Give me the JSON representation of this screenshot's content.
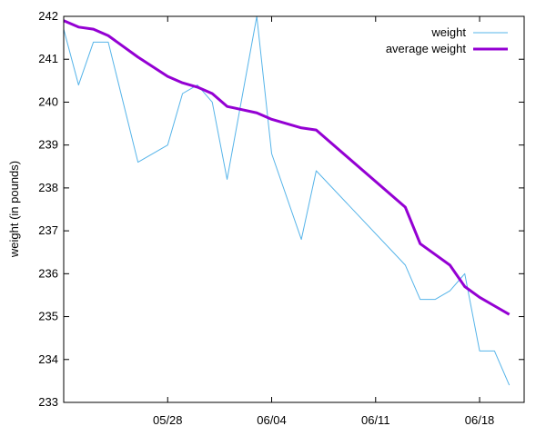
{
  "chart_data": {
    "type": "line",
    "title": "",
    "xlabel": "",
    "ylabel": "weight (in pounds)",
    "x_tick_labels": [
      "05/28",
      "06/04",
      "06/11",
      "06/18"
    ],
    "x_tick_dates": [
      "2024-05-28",
      "2024-06-04",
      "2024-06-11",
      "2024-06-18"
    ],
    "x_range": [
      "2024-05-21",
      "2024-06-21"
    ],
    "ylim": [
      233,
      242
    ],
    "y_ticks": [
      233,
      234,
      235,
      236,
      237,
      238,
      239,
      240,
      241,
      242
    ],
    "grid": false,
    "legend_position": "top-right",
    "series": [
      {
        "name": "weight",
        "color": "#56b4e9",
        "points": [
          [
            "2024-05-21",
            241.7
          ],
          [
            "2024-05-22",
            240.4
          ],
          [
            "2024-05-23",
            241.4
          ],
          [
            "2024-05-24",
            241.4
          ],
          [
            "2024-05-26",
            238.6
          ],
          [
            "2024-05-28",
            239.0
          ],
          [
            "2024-05-29",
            240.2
          ],
          [
            "2024-05-30",
            240.4
          ],
          [
            "2024-05-31",
            240.0
          ],
          [
            "2024-06-01",
            238.2
          ],
          [
            "2024-06-03",
            242.0
          ],
          [
            "2024-06-04",
            238.8
          ],
          [
            "2024-06-06",
            236.8
          ],
          [
            "2024-06-07",
            238.4
          ],
          [
            "2024-06-13",
            236.2
          ],
          [
            "2024-06-14",
            235.4
          ],
          [
            "2024-06-15",
            235.4
          ],
          [
            "2024-06-16",
            235.6
          ],
          [
            "2024-06-17",
            236.0
          ],
          [
            "2024-06-18",
            234.2
          ],
          [
            "2024-06-19",
            234.2
          ],
          [
            "2024-06-20",
            233.4
          ]
        ]
      },
      {
        "name": "average weight",
        "color": "#9400d3",
        "points": [
          [
            "2024-05-21",
            241.9
          ],
          [
            "2024-05-22",
            241.75
          ],
          [
            "2024-05-23",
            241.7
          ],
          [
            "2024-05-24",
            241.55
          ],
          [
            "2024-05-26",
            241.05
          ],
          [
            "2024-05-28",
            240.6
          ],
          [
            "2024-05-29",
            240.45
          ],
          [
            "2024-05-30",
            240.35
          ],
          [
            "2024-05-31",
            240.2
          ],
          [
            "2024-06-01",
            239.9
          ],
          [
            "2024-06-03",
            239.75
          ],
          [
            "2024-06-04",
            239.6
          ],
          [
            "2024-06-06",
            239.4
          ],
          [
            "2024-06-07",
            239.35
          ],
          [
            "2024-06-13",
            237.55
          ],
          [
            "2024-06-14",
            236.7
          ],
          [
            "2024-06-15",
            236.45
          ],
          [
            "2024-06-16",
            236.2
          ],
          [
            "2024-06-17",
            235.7
          ],
          [
            "2024-06-18",
            235.45
          ],
          [
            "2024-06-19",
            235.25
          ],
          [
            "2024-06-20",
            235.05
          ]
        ]
      }
    ]
  }
}
